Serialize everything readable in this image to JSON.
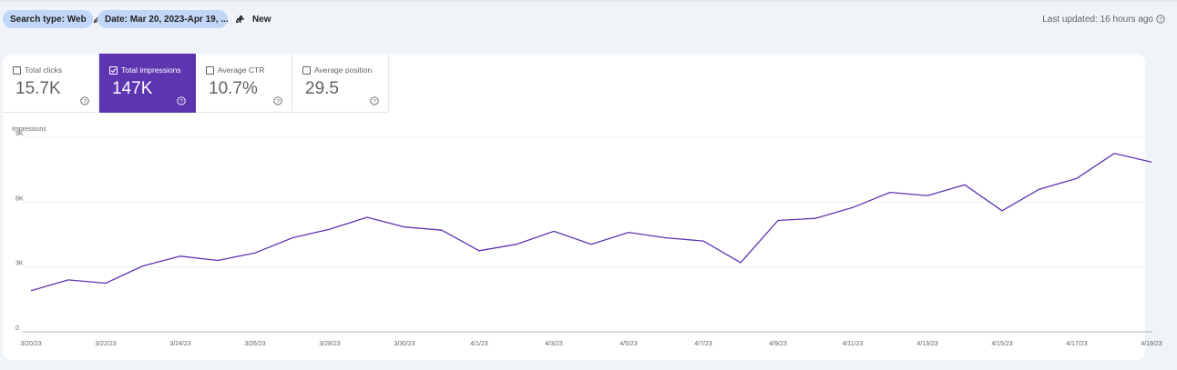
{
  "filters": {
    "search_type": "Search type: Web",
    "date": "Date: Mar 20, 2023-Apr 19, ...",
    "new_label": "New"
  },
  "last_updated": "Last updated: 16 hours ago",
  "metrics": [
    {
      "label": "Total clicks",
      "value": "15.7K",
      "checked": false
    },
    {
      "label": "Total impressions",
      "value": "147K",
      "checked": true
    },
    {
      "label": "Average CTR",
      "value": "10.7%",
      "checked": false
    },
    {
      "label": "Average position",
      "value": "29.5",
      "checked": false
    }
  ],
  "colors": {
    "accent": "#5e35b1",
    "chip": "#c2d7f7",
    "background": "#f0f4f9",
    "line": "#5e35b1"
  },
  "chart_data": {
    "type": "line",
    "title": "",
    "ylabel": "Impressions",
    "xlabel": "",
    "ylim": [
      0,
      9000
    ],
    "yticks": [
      0,
      3000,
      6000,
      9000
    ],
    "ytick_labels": [
      "0",
      "3K",
      "6K",
      "9K"
    ],
    "grid": true,
    "x": [
      "3/20/23",
      "3/21/23",
      "3/22/23",
      "3/23/23",
      "3/24/23",
      "3/25/23",
      "3/26/23",
      "3/27/23",
      "3/28/23",
      "3/29/23",
      "3/30/23",
      "3/31/23",
      "4/1/23",
      "4/2/23",
      "4/3/23",
      "4/4/23",
      "4/5/23",
      "4/6/23",
      "4/7/23",
      "4/8/23",
      "4/9/23",
      "4/10/23",
      "4/11/23",
      "4/12/23",
      "4/13/23",
      "4/14/23",
      "4/15/23",
      "4/16/23",
      "4/17/23",
      "4/18/23",
      "4/19/23"
    ],
    "xtick_labels": [
      "3/20/23",
      "3/22/23",
      "3/24/23",
      "3/26/23",
      "3/28/23",
      "3/30/23",
      "4/1/23",
      "4/3/23",
      "4/5/23",
      "4/7/23",
      "4/9/23",
      "4/11/23",
      "4/13/23",
      "4/15/23",
      "4/17/23",
      "4/19/23"
    ],
    "series": [
      {
        "values": [
          1900,
          2400,
          2250,
          3050,
          3500,
          3300,
          3650,
          4350,
          4750,
          5300,
          4850,
          4700,
          3750,
          4050,
          4650,
          4050,
          4600,
          4350,
          4200,
          3200,
          5150,
          5250,
          5750,
          6450,
          6300,
          6800,
          5600,
          6600,
          7100,
          8250,
          7850
        ]
      }
    ]
  }
}
